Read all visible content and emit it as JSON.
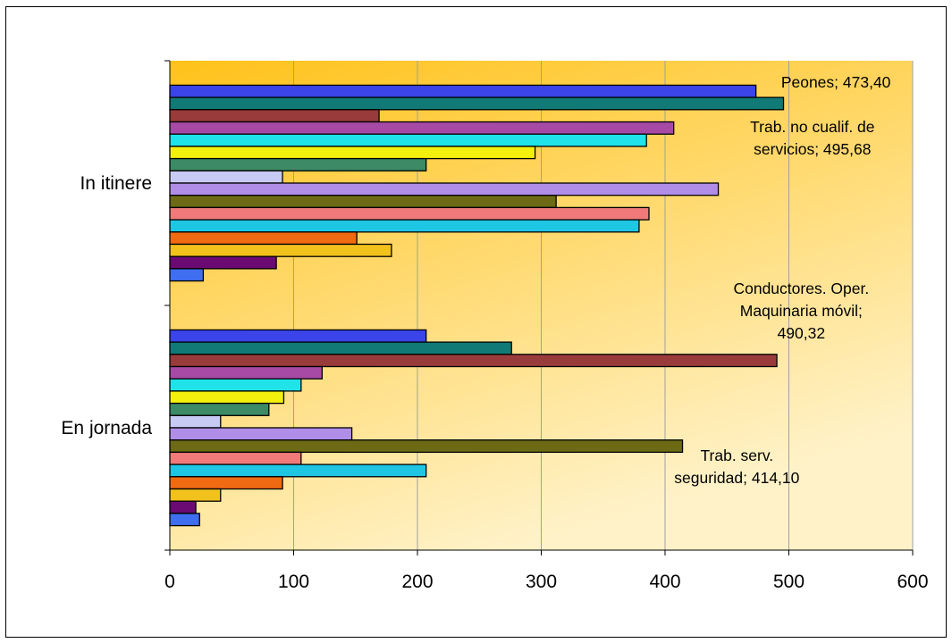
{
  "chart_data": {
    "type": "bar",
    "orientation": "horizontal",
    "categories": [
      "In itinere",
      "En jornada"
    ],
    "xlim": [
      0,
      600
    ],
    "xticks": [
      0,
      100,
      200,
      300,
      400,
      500,
      600
    ],
    "xlabel": "",
    "ylabel": "",
    "title": "",
    "grid": "vertical",
    "legend": "none",
    "background_gradient": [
      "#ffc21a",
      "#fff2c8"
    ],
    "series": [
      {
        "color": "#3a44e8",
        "values": [
          473.4,
          207
        ]
      },
      {
        "color": "#117a76",
        "values": [
          495.68,
          276
        ]
      },
      {
        "color": "#9a3b3b",
        "values": [
          169,
          490.32
        ]
      },
      {
        "color": "#a64aa6",
        "values": [
          407,
          123
        ]
      },
      {
        "color": "#1fe3e8",
        "values": [
          385,
          106
        ]
      },
      {
        "color": "#f4f00e",
        "values": [
          295,
          92
        ]
      },
      {
        "color": "#3c8a66",
        "values": [
          207,
          80
        ]
      },
      {
        "color": "#c7caf2",
        "values": [
          91,
          41
        ]
      },
      {
        "color": "#b08ee8",
        "values": [
          443,
          147
        ]
      },
      {
        "color": "#6c6a14",
        "values": [
          312,
          414.1
        ]
      },
      {
        "color": "#f07a7a",
        "values": [
          387,
          106
        ]
      },
      {
        "color": "#1ec6e3",
        "values": [
          379,
          207
        ]
      },
      {
        "color": "#f06a12",
        "values": [
          151,
          91
        ]
      },
      {
        "color": "#f2c21c",
        "values": [
          179,
          41
        ]
      },
      {
        "color": "#6a0a72",
        "values": [
          86,
          21
        ]
      },
      {
        "color": "#3f6ef0",
        "values": [
          27,
          24
        ]
      }
    ],
    "annotations": [
      {
        "lines": [
          "Peones; 473,40"
        ]
      },
      {
        "lines": [
          "Trab. no cualif. de",
          "servicios; 495,68"
        ]
      },
      {
        "lines": [
          "Conductores. Oper.",
          "Maquinaria móvil;",
          "490,32"
        ]
      },
      {
        "lines": [
          "Trab. serv.",
          "seguridad; 414,10"
        ]
      }
    ]
  }
}
